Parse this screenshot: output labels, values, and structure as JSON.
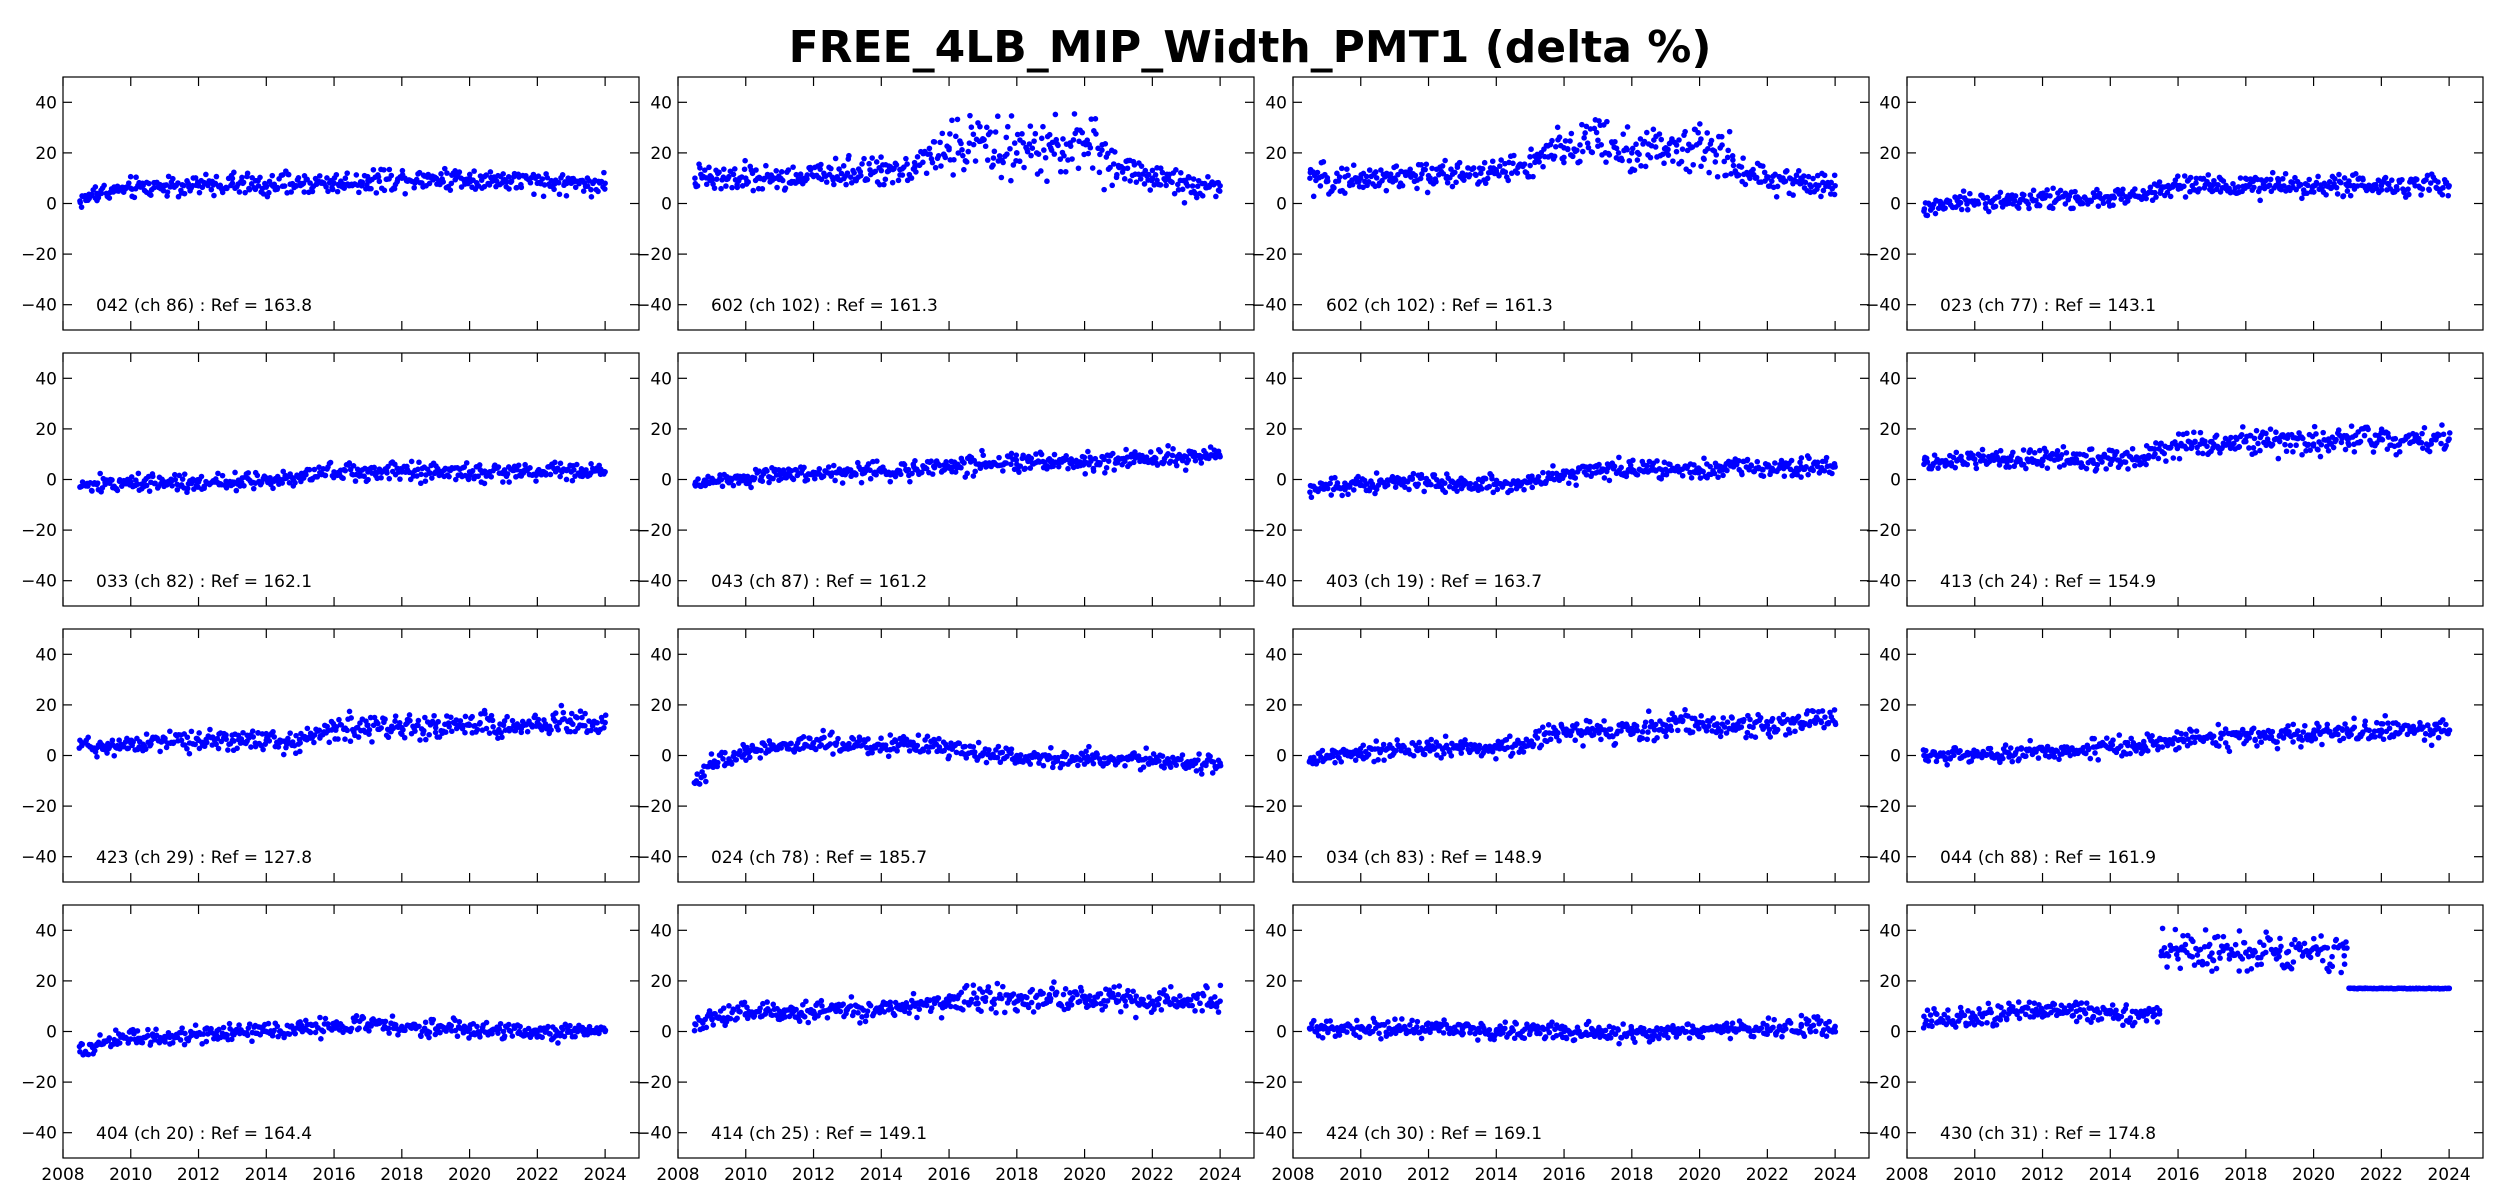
{
  "figure": {
    "title": "FREE_4LB_MIP_Width_PMT1 (delta %)"
  },
  "chart_data": [
    {
      "type": "scatter",
      "label": "042 (ch 86) : Ref = 163.8",
      "xlim": [
        2008,
        2025
      ],
      "ylim": [
        -50,
        50
      ],
      "xticks": [
        "2008",
        "2010",
        "2012",
        "2014",
        "2016",
        "2018",
        "2020",
        "2022",
        "2024"
      ],
      "yticks": [
        "40",
        "20",
        "0",
        "−20",
        "−40"
      ],
      "series": [
        {
          "name": "delta %",
          "color": "#0000ff",
          "x": [
            2008.5,
            2009,
            2010,
            2011,
            2012,
            2013,
            2014,
            2015,
            2016,
            2017,
            2018,
            2019,
            2020,
            2021,
            2022,
            2023,
            2024
          ],
          "y": [
            1,
            4,
            6,
            7,
            7,
            8,
            7,
            8,
            8,
            9,
            10,
            10,
            10,
            9,
            8,
            8,
            8
          ]
        }
      ]
    },
    {
      "type": "scatter",
      "label": "602 (ch 102) : Ref = 161.3",
      "xlim": [
        2008,
        2025
      ],
      "ylim": [
        -50,
        50
      ],
      "xticks": [
        "2008",
        "2010",
        "2012",
        "2014",
        "2016",
        "2018",
        "2020",
        "2022",
        "2024"
      ],
      "yticks": [
        "40",
        "20",
        "0",
        "−20",
        "−40"
      ],
      "series": [
        {
          "name": "delta %",
          "color": "#0000ff",
          "x": [
            2008.5,
            2009,
            2010,
            2011,
            2012,
            2013,
            2014,
            2015,
            2016,
            2017,
            2018,
            2019,
            2020,
            2021,
            2022,
            2023,
            2024
          ],
          "y": [
            10,
            9,
            10,
            10,
            11,
            12,
            13,
            15,
            22,
            25,
            20,
            22,
            24,
            15,
            10,
            8,
            7
          ]
        }
      ]
    },
    {
      "type": "scatter",
      "label": "602 (ch 102) : Ref = 161.3",
      "xlim": [
        2008,
        2025
      ],
      "ylim": [
        -50,
        50
      ],
      "xticks": [
        "2008",
        "2010",
        "2012",
        "2014",
        "2016",
        "2018",
        "2020",
        "2022",
        "2024"
      ],
      "yticks": [
        "40",
        "20",
        "0",
        "−20",
        "−40"
      ],
      "series": [
        {
          "name": "delta %",
          "color": "#0000ff",
          "x": [
            2008.5,
            2009,
            2010,
            2011,
            2012,
            2013,
            2014,
            2015,
            2016,
            2017,
            2018,
            2019,
            2020,
            2021,
            2022,
            2023,
            2024
          ],
          "y": [
            10,
            9,
            10,
            10,
            11,
            12,
            13,
            15,
            22,
            25,
            20,
            22,
            24,
            15,
            10,
            8,
            7
          ]
        }
      ]
    },
    {
      "type": "scatter",
      "label": "023 (ch 77) : Ref = 143.1",
      "xlim": [
        2008,
        2025
      ],
      "ylim": [
        -50,
        50
      ],
      "xticks": [
        "2008",
        "2010",
        "2012",
        "2014",
        "2016",
        "2018",
        "2020",
        "2022",
        "2024"
      ],
      "yticks": [
        "40",
        "20",
        "0",
        "−20",
        "−40"
      ],
      "series": [
        {
          "name": "delta %",
          "color": "#0000ff",
          "x": [
            2008.5,
            2009,
            2010,
            2011,
            2012,
            2013,
            2014,
            2015,
            2016,
            2017,
            2018,
            2019,
            2020,
            2021,
            2022,
            2023,
            2024
          ],
          "y": [
            -3,
            -1,
            1,
            1,
            2,
            2,
            2,
            3,
            7,
            7,
            7,
            7,
            7,
            7,
            7,
            7,
            7
          ]
        }
      ]
    },
    {
      "type": "scatter",
      "label": "033 (ch 82) : Ref = 162.1",
      "xlim": [
        2008,
        2025
      ],
      "ylim": [
        -50,
        50
      ],
      "xticks": [
        "2008",
        "2010",
        "2012",
        "2014",
        "2016",
        "2018",
        "2020",
        "2022",
        "2024"
      ],
      "yticks": [
        "40",
        "20",
        "0",
        "−20",
        "−40"
      ],
      "series": [
        {
          "name": "delta %",
          "color": "#0000ff",
          "x": [
            2008.5,
            2009,
            2010,
            2011,
            2012,
            2013,
            2014,
            2015,
            2016,
            2017,
            2018,
            2019,
            2020,
            2021,
            2022,
            2023,
            2024
          ],
          "y": [
            -3,
            -2,
            -1,
            -1,
            -1,
            -1,
            0,
            1,
            3,
            3,
            3,
            3,
            3,
            3,
            3,
            3,
            3
          ]
        }
      ]
    },
    {
      "type": "scatter",
      "label": "043 (ch 87) : Ref = 161.2",
      "xlim": [
        2008,
        2025
      ],
      "ylim": [
        -50,
        50
      ],
      "xticks": [
        "2008",
        "2010",
        "2012",
        "2014",
        "2016",
        "2018",
        "2020",
        "2022",
        "2024"
      ],
      "yticks": [
        "40",
        "20",
        "0",
        "−20",
        "−40"
      ],
      "series": [
        {
          "name": "delta %",
          "color": "#0000ff",
          "x": [
            2008.5,
            2009,
            2010,
            2011,
            2012,
            2013,
            2014,
            2015,
            2016,
            2017,
            2018,
            2019,
            2020,
            2021,
            2022,
            2023,
            2024
          ],
          "y": [
            -2,
            0,
            1,
            2,
            2,
            3,
            3,
            4,
            5,
            6,
            6,
            7,
            7,
            8,
            8,
            9,
            9
          ]
        }
      ]
    },
    {
      "type": "scatter",
      "label": "403 (ch 19) : Ref = 163.7",
      "xlim": [
        2008,
        2025
      ],
      "ylim": [
        -50,
        50
      ],
      "xticks": [
        "2008",
        "2010",
        "2012",
        "2014",
        "2016",
        "2018",
        "2020",
        "2022",
        "2024"
      ],
      "yticks": [
        "40",
        "20",
        "0",
        "−20",
        "−40"
      ],
      "series": [
        {
          "name": "delta %",
          "color": "#0000ff",
          "x": [
            2008.5,
            2009,
            2010,
            2011,
            2012,
            2013,
            2014,
            2015,
            2016,
            2017,
            2018,
            2019,
            2020,
            2021,
            2022,
            2023,
            2024
          ],
          "y": [
            -5,
            -3,
            -2,
            -1,
            -1,
            -2,
            -2,
            -1,
            2,
            3,
            4,
            4,
            4,
            5,
            5,
            5,
            5
          ]
        }
      ]
    },
    {
      "type": "scatter",
      "label": "413 (ch 24) : Ref = 154.9",
      "xlim": [
        2008,
        2025
      ],
      "ylim": [
        -50,
        50
      ],
      "xticks": [
        "2008",
        "2010",
        "2012",
        "2014",
        "2016",
        "2018",
        "2020",
        "2022",
        "2024"
      ],
      "yticks": [
        "40",
        "20",
        "0",
        "−20",
        "−40"
      ],
      "series": [
        {
          "name": "delta %",
          "color": "#0000ff",
          "x": [
            2008.5,
            2009,
            2010,
            2011,
            2012,
            2013,
            2014,
            2015,
            2016,
            2017,
            2018,
            2019,
            2020,
            2021,
            2022,
            2023,
            2024
          ],
          "y": [
            6,
            7,
            8,
            8,
            8,
            8,
            8,
            9,
            13,
            15,
            15,
            15,
            14,
            16,
            16,
            16,
            16
          ]
        }
      ]
    },
    {
      "type": "scatter",
      "label": "423 (ch 29) : Ref = 127.8",
      "xlim": [
        2008,
        2025
      ],
      "ylim": [
        -50,
        50
      ],
      "xticks": [
        "2008",
        "2010",
        "2012",
        "2014",
        "2016",
        "2018",
        "2020",
        "2022",
        "2024"
      ],
      "yticks": [
        "40",
        "20",
        "0",
        "−20",
        "−40"
      ],
      "series": [
        {
          "name": "delta %",
          "color": "#0000ff",
          "x": [
            2008.5,
            2009,
            2010,
            2011,
            2012,
            2013,
            2014,
            2015,
            2016,
            2017,
            2018,
            2019,
            2020,
            2021,
            2022,
            2023,
            2024
          ],
          "y": [
            6,
            3,
            5,
            6,
            6,
            6,
            6,
            5,
            11,
            12,
            11,
            11,
            12,
            12,
            13,
            13,
            13
          ]
        }
      ]
    },
    {
      "type": "scatter",
      "label": "024 (ch 78) : Ref = 185.7",
      "xlim": [
        2008,
        2025
      ],
      "ylim": [
        -50,
        50
      ],
      "xticks": [
        "2008",
        "2010",
        "2012",
        "2014",
        "2016",
        "2018",
        "2020",
        "2022",
        "2024"
      ],
      "yticks": [
        "40",
        "20",
        "0",
        "−20",
        "−40"
      ],
      "series": [
        {
          "name": "delta %",
          "color": "#0000ff",
          "x": [
            2008.5,
            2009,
            2010,
            2011,
            2012,
            2013,
            2014,
            2015,
            2016,
            2017,
            2018,
            2019,
            2020,
            2021,
            2022,
            2023,
            2024
          ],
          "y": [
            -11,
            -3,
            2,
            4,
            5,
            4,
            4,
            4,
            3,
            1,
            0,
            -1,
            -1,
            -2,
            -2,
            -3,
            -3
          ]
        }
      ]
    },
    {
      "type": "scatter",
      "label": "034 (ch 83) : Ref = 148.9",
      "xlim": [
        2008,
        2025
      ],
      "ylim": [
        -50,
        50
      ],
      "xticks": [
        "2008",
        "2010",
        "2012",
        "2014",
        "2016",
        "2018",
        "2020",
        "2022",
        "2024"
      ],
      "yticks": [
        "40",
        "20",
        "0",
        "−20",
        "−40"
      ],
      "series": [
        {
          "name": "delta %",
          "color": "#0000ff",
          "x": [
            2008.5,
            2009,
            2010,
            2011,
            2012,
            2013,
            2014,
            2015,
            2016,
            2017,
            2018,
            2019,
            2020,
            2021,
            2022,
            2023,
            2024
          ],
          "y": [
            -2,
            0,
            1,
            2,
            3,
            3,
            3,
            5,
            9,
            10,
            10,
            12,
            13,
            12,
            12,
            13,
            13
          ]
        }
      ]
    },
    {
      "type": "scatter",
      "label": "044 (ch 88) : Ref = 161.9",
      "xlim": [
        2008,
        2025
      ],
      "ylim": [
        -50,
        50
      ],
      "xticks": [
        "2008",
        "2010",
        "2012",
        "2014",
        "2016",
        "2018",
        "2020",
        "2022",
        "2024"
      ],
      "yticks": [
        "40",
        "20",
        "0",
        "−20",
        "−40"
      ],
      "series": [
        {
          "name": "delta %",
          "color": "#0000ff",
          "x": [
            2008.5,
            2009,
            2010,
            2011,
            2012,
            2013,
            2014,
            2015,
            2016,
            2017,
            2018,
            2019,
            2020,
            2021,
            2022,
            2023,
            2024
          ],
          "y": [
            0,
            0,
            0,
            1,
            2,
            2,
            3,
            4,
            6,
            7,
            8,
            8,
            9,
            9,
            10,
            10,
            10
          ]
        }
      ]
    },
    {
      "type": "scatter",
      "label": "404 (ch 20) : Ref = 164.4",
      "xlim": [
        2008,
        2025
      ],
      "ylim": [
        -50,
        50
      ],
      "xticks": [
        "2008",
        "2010",
        "2012",
        "2014",
        "2016",
        "2018",
        "2020",
        "2022",
        "2024"
      ],
      "yticks": [
        "40",
        "20",
        "0",
        "−20",
        "−40"
      ],
      "series": [
        {
          "name": "delta %",
          "color": "#0000ff",
          "x": [
            2008.5,
            2009,
            2010,
            2011,
            2012,
            2013,
            2014,
            2015,
            2016,
            2017,
            2018,
            2019,
            2020,
            2021,
            2022,
            2023,
            2024
          ],
          "y": [
            -8,
            -5,
            -3,
            -2,
            -1,
            -1,
            0,
            1,
            2,
            3,
            2,
            1,
            1,
            0,
            0,
            0,
            0
          ]
        }
      ]
    },
    {
      "type": "scatter",
      "label": "414 (ch 25) : Ref = 149.1",
      "xlim": [
        2008,
        2025
      ],
      "ylim": [
        -50,
        50
      ],
      "xticks": [
        "2008",
        "2010",
        "2012",
        "2014",
        "2016",
        "2018",
        "2020",
        "2022",
        "2024"
      ],
      "yticks": [
        "40",
        "20",
        "0",
        "−20",
        "−40"
      ],
      "series": [
        {
          "name": "delta %",
          "color": "#0000ff",
          "x": [
            2008.5,
            2009,
            2010,
            2011,
            2012,
            2013,
            2014,
            2015,
            2016,
            2017,
            2018,
            2019,
            2020,
            2021,
            2022,
            2023,
            2024
          ],
          "y": [
            3,
            5,
            7,
            8,
            8,
            9,
            9,
            10,
            12,
            13,
            12,
            13,
            13,
            12,
            12,
            12,
            12
          ]
        }
      ]
    },
    {
      "type": "scatter",
      "label": "424 (ch 30) : Ref = 169.1",
      "xlim": [
        2008,
        2025
      ],
      "ylim": [
        -50,
        50
      ],
      "xticks": [
        "2008",
        "2010",
        "2012",
        "2014",
        "2016",
        "2018",
        "2020",
        "2022",
        "2024"
      ],
      "yticks": [
        "40",
        "20",
        "0",
        "−20",
        "−40"
      ],
      "series": [
        {
          "name": "delta %",
          "color": "#0000ff",
          "x": [
            2008.5,
            2009,
            2010,
            2011,
            2012,
            2013,
            2014,
            2015,
            2016,
            2017,
            2018,
            2019,
            2020,
            2021,
            2022,
            2023,
            2024
          ],
          "y": [
            1,
            1,
            1,
            1,
            1,
            1,
            0,
            0,
            0,
            -1,
            -1,
            0,
            0,
            1,
            1,
            2,
            2
          ]
        }
      ]
    },
    {
      "type": "scatter",
      "label": "430 (ch 31) : Ref = 174.8",
      "xlim": [
        2008,
        2025
      ],
      "ylim": [
        -50,
        50
      ],
      "xticks": [
        "2008",
        "2010",
        "2012",
        "2014",
        "2016",
        "2018",
        "2020",
        "2022",
        "2024"
      ],
      "yticks": [
        "40",
        "20",
        "0",
        "−20",
        "−40"
      ],
      "series": [
        {
          "name": "delta %",
          "color": "#0000ff",
          "x": [
            2008.5,
            2009,
            2010,
            2011,
            2012,
            2013,
            2014,
            2015,
            2015.5,
            2016,
            2017,
            2018,
            2019,
            2020,
            2020.9,
            2021.2,
            2022,
            2023,
            2024
          ],
          "y": [
            6,
            5,
            6,
            7,
            8,
            8,
            7,
            7,
            30,
            32,
            31,
            31,
            32,
            33,
            33,
            17,
            17,
            17,
            17
          ]
        }
      ]
    }
  ]
}
